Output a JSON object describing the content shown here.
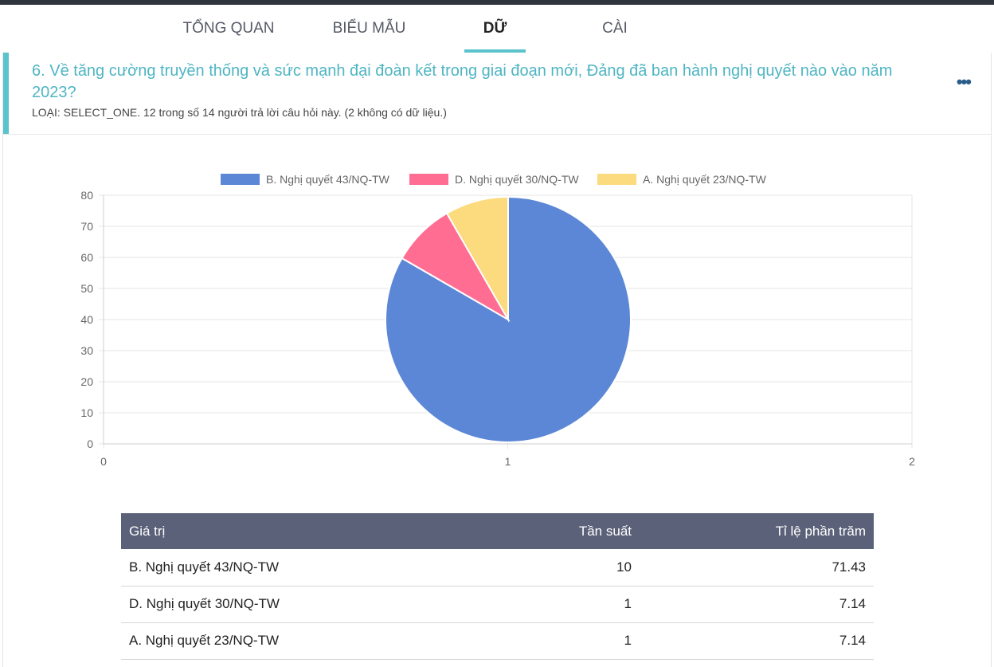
{
  "nav": {
    "tabs": [
      {
        "label": "TỔNG QUAN",
        "active": false
      },
      {
        "label": "BIỂU MẪU",
        "active": false
      },
      {
        "label": "DỮ LIỆU",
        "active": true
      },
      {
        "label": "CÀI ĐẶT",
        "active": false
      }
    ]
  },
  "question": {
    "title": "6. Về tăng cường truyền thống và sức mạnh đại đoàn kết trong giai đoạn mới, Đảng đã ban hành nghị quyết nào vào năm 2023?",
    "meta": "LOẠI: SELECT_ONE. 12 trong số 14 người trả lời câu hỏi này. (2 không có dữ liệu.)",
    "more_icon": "more-horizontal-icon"
  },
  "chart_data": {
    "type": "pie",
    "categories": [
      "B. Nghị quyết 43/NQ-TW",
      "D. Nghị quyết 30/NQ-TW",
      "A. Nghị quyết 23/NQ-TW"
    ],
    "values": [
      10,
      1,
      1
    ],
    "colors": [
      "#5b87d6",
      "#ff6d92",
      "#fbdb7d"
    ],
    "legend_position": "top",
    "y_ticks": [
      "0",
      "10",
      "20",
      "30",
      "40",
      "50",
      "60",
      "70",
      "80"
    ],
    "x_ticks": [
      "0",
      "1",
      "2"
    ],
    "ylim": [
      0,
      80
    ],
    "xlim": [
      0,
      2
    ],
    "grid": true
  },
  "table": {
    "headers": {
      "value": "Giá trị",
      "frequency": "Tần suất",
      "percent": "Tỉ lệ phần trăm"
    },
    "rows": [
      {
        "value": "B. Nghị quyết 43/NQ-TW",
        "frequency": "10",
        "percent": "71.43"
      },
      {
        "value": "D. Nghị quyết 30/NQ-TW",
        "frequency": "1",
        "percent": "7.14"
      },
      {
        "value": "A. Nghị quyết 23/NQ-TW",
        "frequency": "1",
        "percent": "7.14"
      }
    ]
  }
}
